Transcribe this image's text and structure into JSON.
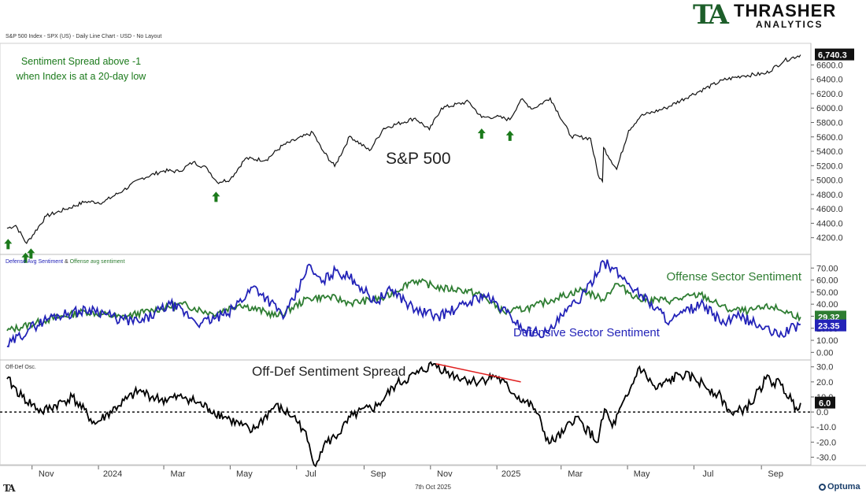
{
  "brand": {
    "mark": "TA",
    "name": "THRASHER",
    "sub": "ANALYTICS"
  },
  "chart_title": "S&P 500 Index - SPX (US) - Daily Line Chart - USD - No Layout",
  "footer": {
    "left": "TA",
    "date": "7th Oct 2025",
    "brand": "Optuma"
  },
  "colors": {
    "price": "#111111",
    "offense": "#2e7d32",
    "defense": "#2323b8",
    "spread": "#000000",
    "arrow": "#1b7a1b",
    "trendline": "#e02020"
  },
  "chart_data": [
    {
      "type": "line",
      "panel": "price",
      "annotation": "Sentiment Spread above -1\nwhen Index is at a 20-day low",
      "series": [
        {
          "name": "S&P 500",
          "x": [
            "2023-10-09",
            "2023-10-17",
            "2023-10-27",
            "2023-11-14",
            "2023-12-01",
            "2023-12-20",
            "2024-01-05",
            "2024-01-24",
            "2024-02-09",
            "2024-03-01",
            "2024-03-15",
            "2024-03-28",
            "2024-04-10",
            "2024-04-19",
            "2024-05-01",
            "2024-05-15",
            "2024-06-03",
            "2024-06-18",
            "2024-07-16",
            "2024-07-24",
            "2024-08-05",
            "2024-08-19",
            "2024-09-06",
            "2024-09-19",
            "2024-10-18",
            "2024-10-31",
            "2024-11-11",
            "2024-12-06",
            "2024-12-18",
            "2024-12-31",
            "2025-01-13",
            "2025-01-23",
            "2025-02-03",
            "2025-02-19",
            "2025-03-10",
            "2025-03-28",
            "2025-04-04",
            "2025-04-08",
            "2025-04-09",
            "2025-04-21",
            "2025-05-02",
            "2025-05-13",
            "2025-06-05",
            "2025-06-27",
            "2025-07-28",
            "2025-08-15",
            "2025-09-05",
            "2025-09-22",
            "2025-10-07"
          ],
          "values": [
            4330,
            4370,
            4120,
            4500,
            4590,
            4700,
            4690,
            4860,
            5020,
            5130,
            5120,
            5250,
            5160,
            4970,
            5010,
            5300,
            5280,
            5480,
            5660,
            5430,
            5190,
            5610,
            5410,
            5720,
            5860,
            5700,
            6000,
            6090,
            5870,
            5880,
            5840,
            6120,
            5990,
            6140,
            5610,
            5580,
            5070,
            4980,
            5450,
            5150,
            5690,
            5890,
            6000,
            6170,
            6390,
            6450,
            6480,
            6660,
            6740
          ]
        }
      ],
      "last_value_label": "6,740.3",
      "ylim": [
        4000,
        6900
      ],
      "y_ticks": [
        "6600.0",
        "6400.0",
        "6200.0",
        "6000.0",
        "5800.0",
        "5600.0",
        "5400.0",
        "5200.0",
        "5000.0",
        "4800.0",
        "4600.0",
        "4400.0",
        "4200.0"
      ],
      "signals": [
        "2023-10-10",
        "2023-10-26",
        "2023-10-31",
        "2024-04-18",
        "2024-12-18",
        "2025-01-13"
      ],
      "series_label": "S&P 500"
    },
    {
      "type": "line",
      "panel": "sentiment",
      "legend": {
        "defense": "Defense Avg Sentiment",
        "sep": "&",
        "offense": "Offense avg sentiment"
      },
      "series": [
        {
          "name": "Offense Sector Sentiment",
          "x": [
            "2023-10-09",
            "2023-11-15",
            "2023-12-20",
            "2024-01-22",
            "2024-02-20",
            "2024-03-18",
            "2024-04-15",
            "2024-05-10",
            "2024-06-14",
            "2024-07-12",
            "2024-07-31",
            "2024-08-20",
            "2024-09-20",
            "2024-10-16",
            "2024-11-12",
            "2024-11-29",
            "2024-12-17",
            "2025-01-08",
            "2025-02-04",
            "2025-02-24",
            "2025-03-20",
            "2025-04-08",
            "2025-04-21",
            "2025-05-12",
            "2025-06-10",
            "2025-07-07",
            "2025-07-31",
            "2025-08-20",
            "2025-09-10",
            "2025-10-07"
          ],
          "values": [
            18,
            27,
            34,
            29,
            35,
            40,
            32,
            40,
            30,
            45,
            46,
            41,
            45,
            60,
            53,
            52,
            48,
            33,
            38,
            45,
            52,
            44,
            57,
            44,
            43,
            48,
            36,
            34,
            38,
            29.32
          ]
        },
        {
          "name": "Defensive Sector Sentiment",
          "x": [
            "2023-10-09",
            "2023-10-30",
            "2023-11-20",
            "2023-12-28",
            "2024-01-17",
            "2024-02-09",
            "2024-03-07",
            "2024-04-04",
            "2024-04-29",
            "2024-05-23",
            "2024-06-20",
            "2024-07-02",
            "2024-07-11",
            "2024-07-24",
            "2024-08-06",
            "2024-08-23",
            "2024-09-11",
            "2024-09-27",
            "2024-10-18",
            "2024-11-08",
            "2024-11-25",
            "2024-12-20",
            "2025-01-10",
            "2025-01-27",
            "2025-02-17",
            "2025-03-06",
            "2025-03-24",
            "2025-04-08",
            "2025-04-24",
            "2025-05-13",
            "2025-06-09",
            "2025-07-07",
            "2025-07-29",
            "2025-08-12",
            "2025-08-26",
            "2025-09-16",
            "2025-10-07"
          ],
          "values": [
            5,
            20,
            30,
            36,
            28,
            25,
            40,
            24,
            32,
            55,
            30,
            50,
            72,
            58,
            68,
            60,
            42,
            52,
            35,
            30,
            36,
            48,
            33,
            18,
            16,
            34,
            50,
            76,
            64,
            48,
            26,
            40,
            24,
            30,
            24,
            14,
            23.35
          ]
        }
      ],
      "last_values": [
        "29.32",
        "23.35"
      ],
      "ylim": [
        -5,
        80
      ],
      "y_ticks": [
        "70.00",
        "60.00",
        "50.00",
        "40.00",
        "30.00",
        "20.00",
        "10.00",
        "0.00"
      ]
    },
    {
      "type": "line",
      "panel": "oscillator",
      "panel_title": "Off-Def Osc.",
      "series": [
        {
          "name": "Off-Def Sentiment Spread",
          "x": [
            "2023-10-09",
            "2023-10-23",
            "2023-11-10",
            "2023-12-08",
            "2023-12-29",
            "2024-01-19",
            "2024-02-07",
            "2024-02-27",
            "2024-03-21",
            "2024-04-12",
            "2024-05-01",
            "2024-05-21",
            "2024-06-11",
            "2024-06-28",
            "2024-07-08",
            "2024-07-17",
            "2024-07-26",
            "2024-08-08",
            "2024-08-22",
            "2024-09-13",
            "2024-09-30",
            "2024-10-21",
            "2024-11-04",
            "2024-11-20",
            "2024-12-12",
            "2024-12-31",
            "2025-01-17",
            "2025-02-05",
            "2025-02-18",
            "2025-03-03",
            "2025-03-14",
            "2025-04-04",
            "2025-04-10",
            "2025-04-17",
            "2025-05-02",
            "2025-05-12",
            "2025-05-27",
            "2025-06-18",
            "2025-07-02",
            "2025-07-23",
            "2025-08-06",
            "2025-08-22",
            "2025-09-05",
            "2025-09-19",
            "2025-10-03",
            "2025-10-07"
          ],
          "values": [
            22,
            10,
            0,
            10,
            -8,
            4,
            14,
            8,
            10,
            2,
            -5,
            -13,
            4,
            -3,
            -12,
            -35,
            -22,
            -15,
            -2,
            4,
            18,
            26,
            32,
            25,
            20,
            24,
            12,
            2,
            -21,
            -14,
            -3,
            -20,
            2,
            -10,
            12,
            30,
            15,
            25,
            22,
            12,
            -2,
            5,
            22,
            18,
            3,
            6
          ]
        }
      ],
      "last_value_label": "6.0",
      "zero_line": 0,
      "trendline": {
        "x": [
          "2024-11-06",
          "2025-01-23"
        ],
        "y": [
          32,
          20
        ]
      },
      "ylim": [
        -35,
        33
      ],
      "y_ticks": [
        "30.0",
        "20.0",
        "10.0",
        "0.0",
        "-10.0",
        "-20.0",
        "-30.0"
      ]
    }
  ],
  "x_axis": {
    "ticks": [
      {
        "label": "Nov",
        "date": "2023-11-01"
      },
      {
        "label": "2024",
        "date": "2024-01-01"
      },
      {
        "label": "Mar",
        "date": "2024-03-01"
      },
      {
        "label": "May",
        "date": "2024-05-01"
      },
      {
        "label": "Jul",
        "date": "2024-07-01"
      },
      {
        "label": "Sep",
        "date": "2024-09-01"
      },
      {
        "label": "Nov",
        "date": "2024-11-01"
      },
      {
        "label": "2025",
        "date": "2025-01-01"
      },
      {
        "label": "Mar",
        "date": "2025-03-01"
      },
      {
        "label": "May",
        "date": "2025-05-01"
      },
      {
        "label": "Jul",
        "date": "2025-07-01"
      },
      {
        "label": "Sep",
        "date": "2025-09-01"
      }
    ],
    "range": [
      "2023-10-04",
      "2025-10-15"
    ]
  }
}
